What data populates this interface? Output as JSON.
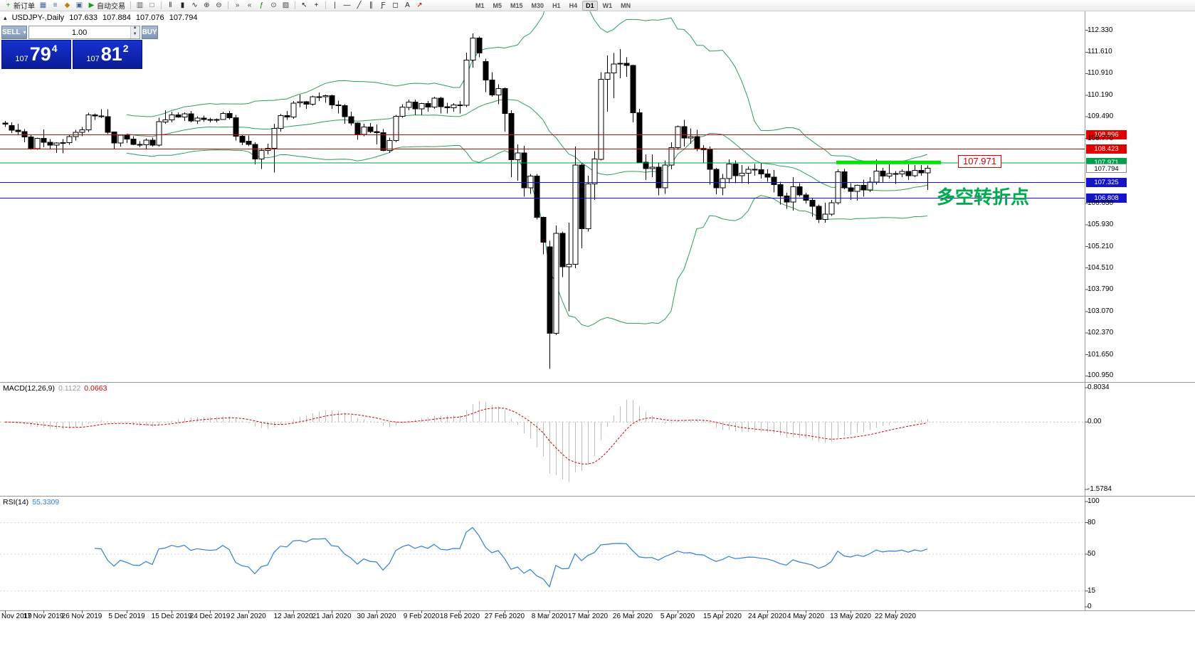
{
  "window": {
    "title": "USDJPY-,Daily"
  },
  "toolbar": {
    "groups": [
      {
        "items": [
          {
            "name": "new-order",
            "glyph": "+",
            "color": "#18a018",
            "label": "新订单"
          },
          {
            "name": "charts-grid",
            "glyph": "▦",
            "color": "#46689a"
          },
          {
            "name": "market-watch",
            "glyph": "≡",
            "color": "#46689a"
          },
          {
            "name": "navigator",
            "glyph": "◆",
            "color": "#b8860b"
          },
          {
            "name": "terminal",
            "glyph": "▣",
            "color": "#46689a"
          },
          {
            "name": "autotrading",
            "glyph": "▶",
            "color": "#14a014",
            "label": "自动交易"
          }
        ]
      },
      {
        "items": [
          {
            "name": "tile-windows",
            "glyph": "▥",
            "color": "#555555"
          },
          {
            "name": "cascade-windows",
            "glyph": "□",
            "color": "#555555"
          }
        ]
      },
      {
        "items": [
          {
            "name": "bar-chart",
            "glyph": "ǁ",
            "color": "#222222"
          },
          {
            "name": "candlestick-chart",
            "glyph": "▮",
            "color": "#222222"
          },
          {
            "name": "line-chart",
            "glyph": "∿",
            "color": "#222222"
          },
          {
            "name": "zoom-in",
            "glyph": "⊕",
            "color": "#333333"
          },
          {
            "name": "zoom-out",
            "glyph": "⊖",
            "color": "#333333"
          }
        ]
      },
      {
        "items": [
          {
            "name": "auto-scroll",
            "glyph": "»",
            "color": "#444444"
          },
          {
            "name": "chart-shift",
            "glyph": "«",
            "color": "#444444"
          },
          {
            "name": "indicators-list",
            "glyph": "ƒ",
            "color": "#0a7d0a"
          },
          {
            "name": "periods",
            "glyph": "⊙",
            "color": "#444444"
          },
          {
            "name": "templates",
            "glyph": "▨",
            "color": "#444444"
          }
        ]
      },
      {
        "items": [
          {
            "name": "cursor",
            "glyph": "↖",
            "color": "#222222"
          },
          {
            "name": "crosshair",
            "glyph": "+",
            "color": "#222222"
          }
        ]
      },
      {
        "items": [
          {
            "name": "vertical-line",
            "glyph": "|",
            "color": "#222222"
          },
          {
            "name": "horizontal-line",
            "glyph": "―",
            "color": "#222222"
          },
          {
            "name": "trendline",
            "glyph": "╱",
            "color": "#222222"
          },
          {
            "name": "equidistant-channel",
            "glyph": "∥",
            "color": "#222222"
          },
          {
            "name": "fibonacci",
            "glyph": "Ƒ",
            "color": "#222222"
          },
          {
            "name": "shapes",
            "glyph": "◻",
            "color": "#222222"
          },
          {
            "name": "text-label",
            "glyph": "A",
            "color": "#222222"
          },
          {
            "name": "arrow-tools",
            "glyph": "↗",
            "color": "#c00000"
          }
        ]
      }
    ],
    "timeframes": [
      "M1",
      "M5",
      "M15",
      "M30",
      "H1",
      "H4",
      "D1",
      "W1",
      "MN"
    ],
    "active_timeframe": "D1"
  },
  "trade_panel": {
    "sell_label": "SELL",
    "buy_label": "BUY",
    "volume": "1.00",
    "sell_small": "107",
    "sell_big": "79",
    "sell_sup": "4",
    "buy_small": "107",
    "buy_big": "81",
    "buy_sup": "2"
  },
  "symbol_info": {
    "symbol": "USDJPY-,Daily",
    "open": "107.633",
    "high": "107.884",
    "low": "107.076",
    "close": "107.794"
  },
  "price_axis": {
    "ticks": [
      "112.330",
      "111.610",
      "110.910",
      "110.190",
      "109.490",
      "108.770",
      "106.630",
      "105.930",
      "105.210",
      "104.510",
      "103.790",
      "103.070",
      "102.370",
      "101.650",
      "100.950"
    ]
  },
  "levels": [
    {
      "price": 108.896,
      "label": "108.896",
      "color": "#e00000"
    },
    {
      "price": 108.423,
      "label": "108.423",
      "color": "#e00000"
    },
    {
      "price": 107.971,
      "label": "107.971",
      "color": "#00a14b",
      "highlight": true,
      "highlight_color": "#00e400"
    },
    {
      "price": 107.325,
      "label": "107.325",
      "color": "#1414c8"
    },
    {
      "price": 106.808,
      "label": "106.808",
      "color": "#1414c8"
    }
  ],
  "bid": {
    "price": 107.794,
    "label": "107.794"
  },
  "callout": {
    "text": "107.971"
  },
  "annotation": {
    "text": "多空转折点",
    "color": "#00a84f"
  },
  "macd_panel": {
    "title": "MACD(12,26,9)",
    "value_main": "0.1122",
    "value_signal": "0.0663",
    "axis": [
      "0.8034",
      "0.00",
      "-1.5784"
    ]
  },
  "rsi_panel": {
    "title": "RSI(14)",
    "value": "55.3309",
    "axis": [
      "100",
      "80",
      "50",
      "15",
      "0"
    ]
  },
  "date_axis": {
    "labels": [
      [
        "Nov 2019",
        0
      ],
      [
        "17 Nov 2019",
        6
      ],
      [
        "26 Nov 2019",
        12
      ],
      [
        "5 Dec 2019",
        19
      ],
      [
        "15 Dec 2019",
        26
      ],
      [
        "24 Dec 2019",
        32
      ],
      [
        "2 Jan 2020",
        38
      ],
      [
        "12 Jan 2020",
        45
      ],
      [
        "21 Jan 2020",
        51
      ],
      [
        "30 Jan 2020",
        58
      ],
      [
        "9 Feb 2020",
        65
      ],
      [
        "18 Feb 2020",
        71
      ],
      [
        "27 Feb 2020",
        78
      ],
      [
        "8 Mar 2020",
        85
      ],
      [
        "17 Mar 2020",
        91
      ],
      [
        "26 Mar 2020",
        98
      ],
      [
        "5 Apr 2020",
        105
      ],
      [
        "15 Apr 2020",
        112
      ],
      [
        "24 Apr 2020",
        119
      ],
      [
        "4 May 2020",
        125
      ],
      [
        "13 May 2020",
        132
      ],
      [
        "22 May 2020",
        139
      ]
    ]
  },
  "chart_data": {
    "type": "candlestick",
    "symbol": "USDJPY",
    "timeframe": "Daily",
    "ylim": [
      100.75,
      112.98
    ],
    "indicators": {
      "bollinger": {
        "period": 20,
        "dev": 2,
        "color": "#2aa05a"
      },
      "macd": {
        "fast": 12,
        "slow": 26,
        "signal": 9,
        "hist_color": "#bdbdbd",
        "signal_color": "#d00000"
      },
      "rsi": {
        "period": 14,
        "color": "#2f7ed8"
      }
    },
    "candles": [
      [
        109.28,
        109.35,
        109.15,
        109.24
      ],
      [
        109.2,
        109.3,
        108.95,
        109.04
      ],
      [
        109.04,
        109.25,
        108.9,
        109.0
      ],
      [
        109.0,
        109.08,
        108.65,
        108.82
      ],
      [
        108.82,
        108.9,
        108.4,
        108.43
      ],
      [
        108.43,
        108.8,
        108.4,
        108.78
      ],
      [
        108.78,
        109.07,
        108.48,
        108.65
      ],
      [
        108.65,
        108.75,
        108.42,
        108.55
      ],
      [
        108.55,
        108.65,
        108.3,
        108.62
      ],
      [
        108.62,
        108.75,
        108.28,
        108.63
      ],
      [
        108.63,
        108.88,
        108.56,
        108.83
      ],
      [
        108.83,
        109.05,
        108.7,
        108.97
      ],
      [
        108.97,
        109.15,
        108.85,
        109.06
      ],
      [
        109.06,
        109.62,
        108.99,
        109.55
      ],
      [
        109.55,
        109.6,
        109.38,
        109.51
      ],
      [
        109.51,
        109.73,
        109.44,
        109.49
      ],
      [
        109.49,
        109.73,
        108.92,
        108.98
      ],
      [
        108.98,
        109.0,
        108.43,
        108.62
      ],
      [
        108.62,
        108.9,
        108.5,
        108.88
      ],
      [
        108.88,
        108.92,
        108.62,
        108.75
      ],
      [
        108.75,
        108.85,
        108.55,
        108.58
      ],
      [
        108.58,
        108.68,
        108.48,
        108.56
      ],
      [
        108.56,
        108.78,
        108.42,
        108.72
      ],
      [
        108.72,
        108.8,
        108.5,
        108.55
      ],
      [
        108.55,
        109.45,
        108.5,
        109.32
      ],
      [
        109.32,
        109.7,
        109.25,
        109.38
      ],
      [
        109.38,
        109.65,
        109.3,
        109.55
      ],
      [
        109.55,
        109.63,
        109.45,
        109.48
      ],
      [
        109.48,
        109.63,
        109.35,
        109.58
      ],
      [
        109.58,
        109.68,
        109.3,
        109.35
      ],
      [
        109.35,
        109.5,
        109.25,
        109.44
      ],
      [
        109.44,
        109.53,
        109.32,
        109.4
      ],
      [
        109.4,
        109.45,
        109.3,
        109.37
      ],
      [
        109.37,
        109.43,
        109.3,
        109.4
      ],
      [
        109.4,
        109.65,
        109.38,
        109.6
      ],
      [
        109.6,
        109.68,
        109.4,
        109.45
      ],
      [
        109.45,
        109.55,
        108.7,
        108.85
      ],
      [
        108.85,
        108.9,
        108.55,
        108.65
      ],
      [
        108.68,
        108.87,
        108.52,
        108.58
      ],
      [
        108.58,
        108.65,
        107.92,
        108.09
      ],
      [
        108.09,
        108.45,
        107.77,
        108.38
      ],
      [
        108.38,
        108.6,
        108.25,
        108.45
      ],
      [
        108.45,
        109.25,
        107.65,
        109.1
      ],
      [
        109.1,
        109.58,
        109.0,
        109.52
      ],
      [
        109.52,
        109.68,
        109.38,
        109.48
      ],
      [
        109.48,
        110.0,
        109.42,
        109.94
      ],
      [
        109.94,
        110.21,
        109.8,
        109.98
      ],
      [
        109.98,
        110.0,
        109.75,
        109.9
      ],
      [
        109.9,
        110.18,
        109.85,
        110.15
      ],
      [
        110.15,
        110.29,
        110.0,
        110.14
      ],
      [
        110.14,
        110.22,
        109.95,
        110.18
      ],
      [
        110.18,
        110.22,
        109.75,
        109.88
      ],
      [
        109.88,
        110.02,
        109.6,
        109.85
      ],
      [
        109.85,
        109.9,
        109.26,
        109.49
      ],
      [
        109.49,
        109.65,
        109.2,
        109.28
      ],
      [
        109.28,
        109.3,
        108.73,
        108.9
      ],
      [
        108.9,
        109.25,
        108.85,
        109.15
      ],
      [
        109.15,
        109.28,
        108.95,
        109.0
      ],
      [
        109.0,
        109.23,
        108.58,
        108.96
      ],
      [
        108.96,
        109.08,
        108.35,
        108.38
      ],
      [
        108.38,
        108.8,
        108.3,
        108.7
      ],
      [
        108.7,
        109.55,
        108.65,
        109.5
      ],
      [
        109.5,
        109.9,
        109.45,
        109.8
      ],
      [
        109.8,
        110.05,
        109.7,
        109.97
      ],
      [
        109.97,
        110.05,
        109.55,
        109.75
      ],
      [
        109.75,
        109.95,
        109.55,
        109.92
      ],
      [
        109.92,
        110.0,
        109.65,
        109.8
      ],
      [
        109.8,
        110.15,
        109.75,
        110.1
      ],
      [
        110.1,
        110.15,
        109.6,
        109.82
      ],
      [
        109.82,
        109.95,
        109.6,
        109.78
      ],
      [
        109.78,
        109.93,
        109.65,
        109.88
      ],
      [
        109.88,
        110.0,
        109.6,
        109.87
      ],
      [
        109.87,
        111.6,
        109.8,
        111.35
      ],
      [
        111.35,
        112.23,
        111.1,
        112.08
      ],
      [
        112.08,
        112.12,
        111.45,
        111.58
      ],
      [
        111.3,
        111.4,
        110.3,
        110.7
      ],
      [
        110.7,
        110.95,
        110.15,
        110.2
      ],
      [
        110.2,
        110.55,
        109.9,
        110.42
      ],
      [
        110.42,
        110.45,
        109.0,
        109.6
      ],
      [
        109.6,
        109.7,
        107.5,
        108.07
      ],
      [
        108.07,
        108.58,
        107.38,
        108.3
      ],
      [
        108.3,
        108.53,
        106.85,
        107.15
      ],
      [
        107.15,
        107.6,
        106.95,
        107.53
      ],
      [
        107.53,
        107.6,
        106.1,
        106.17
      ],
      [
        106.17,
        106.2,
        104.95,
        105.35
      ],
      [
        105.2,
        105.4,
        101.18,
        102.36
      ],
      [
        102.36,
        105.9,
        102.3,
        105.65
      ],
      [
        105.65,
        105.7,
        104.2,
        104.55
      ],
      [
        104.55,
        106.0,
        103.08,
        104.63
      ],
      [
        104.63,
        108.5,
        104.5,
        107.9
      ],
      [
        107.9,
        107.95,
        105.15,
        105.8
      ],
      [
        105.8,
        107.55,
        105.7,
        107.27
      ],
      [
        107.27,
        108.35,
        106.75,
        108.09
      ],
      [
        108.09,
        110.95,
        108.05,
        110.72
      ],
      [
        110.72,
        111.5,
        109.65,
        110.93
      ],
      [
        110.93,
        111.59,
        110.1,
        111.22
      ],
      [
        111.22,
        111.71,
        110.75,
        111.25
      ],
      [
        111.25,
        111.45,
        110.8,
        111.18
      ],
      [
        111.18,
        111.2,
        109.3,
        109.62
      ],
      [
        109.62,
        109.75,
        107.95,
        107.99
      ],
      [
        107.99,
        108.25,
        107.4,
        107.78
      ],
      [
        107.78,
        108.25,
        107.5,
        107.83
      ],
      [
        107.83,
        107.95,
        106.9,
        107.15
      ],
      [
        107.15,
        108.05,
        106.95,
        107.9
      ],
      [
        107.9,
        108.65,
        107.75,
        108.47
      ],
      [
        108.47,
        109.2,
        108.4,
        109.16
      ],
      [
        109.16,
        109.38,
        108.5,
        108.78
      ],
      [
        108.78,
        109.1,
        108.6,
        108.83
      ],
      [
        108.83,
        109.05,
        108.35,
        108.45
      ],
      [
        108.45,
        108.55,
        107.95,
        108.4
      ],
      [
        108.4,
        108.5,
        107.25,
        107.75
      ],
      [
        107.75,
        107.8,
        106.93,
        107.15
      ],
      [
        107.15,
        107.6,
        106.9,
        107.45
      ],
      [
        107.45,
        108.08,
        107.3,
        107.93
      ],
      [
        107.93,
        108.05,
        107.3,
        107.54
      ],
      [
        107.54,
        107.9,
        107.3,
        107.63
      ],
      [
        107.63,
        107.85,
        107.28,
        107.76
      ],
      [
        107.76,
        107.93,
        107.55,
        107.74
      ],
      [
        107.74,
        107.95,
        107.45,
        107.6
      ],
      [
        107.6,
        107.75,
        107.35,
        107.5
      ],
      [
        107.5,
        107.73,
        106.99,
        107.25
      ],
      [
        107.25,
        107.35,
        106.6,
        106.88
      ],
      [
        106.88,
        106.98,
        106.45,
        106.68
      ],
      [
        106.68,
        107.5,
        106.4,
        107.18
      ],
      [
        107.18,
        107.3,
        106.85,
        106.91
      ],
      [
        106.91,
        106.98,
        106.63,
        106.74
      ],
      [
        106.74,
        106.8,
        106.2,
        106.54
      ],
      [
        106.54,
        106.6,
        105.99,
        106.1
      ],
      [
        106.1,
        106.65,
        106.0,
        106.28
      ],
      [
        106.28,
        106.75,
        106.22,
        106.65
      ],
      [
        106.65,
        107.75,
        106.6,
        107.67
      ],
      [
        107.67,
        107.77,
        107.1,
        107.15
      ],
      [
        107.15,
        107.3,
        106.75,
        107.03
      ],
      [
        107.03,
        107.25,
        106.73,
        107.23
      ],
      [
        107.23,
        107.42,
        106.85,
        107.08
      ],
      [
        107.08,
        107.5,
        107.0,
        107.33
      ],
      [
        107.33,
        108.08,
        107.25,
        107.7
      ],
      [
        107.7,
        107.8,
        107.32,
        107.53
      ],
      [
        107.53,
        107.92,
        107.45,
        107.62
      ],
      [
        107.62,
        107.7,
        107.27,
        107.6
      ],
      [
        107.6,
        107.75,
        107.5,
        107.69
      ],
      [
        107.69,
        107.92,
        107.4,
        107.55
      ],
      [
        107.55,
        107.9,
        107.5,
        107.72
      ],
      [
        107.72,
        107.9,
        107.55,
        107.64
      ],
      [
        107.633,
        107.884,
        107.076,
        107.794
      ]
    ]
  }
}
